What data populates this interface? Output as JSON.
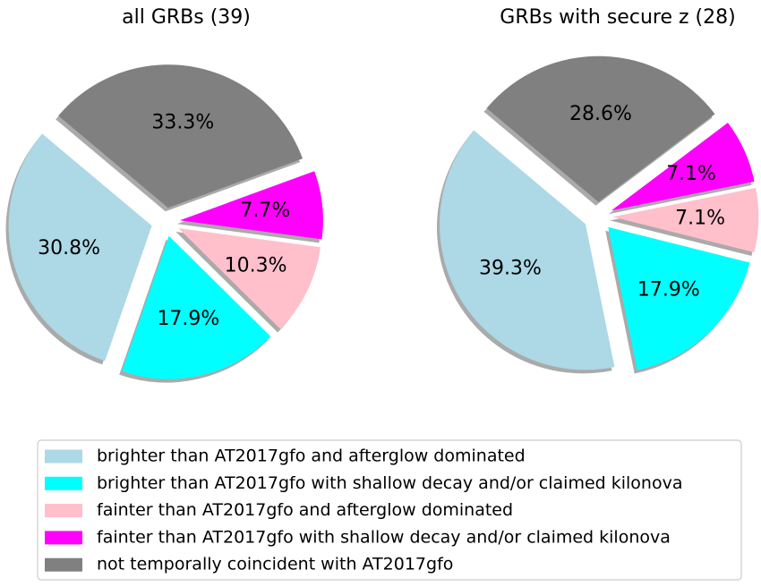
{
  "chart_data": [
    {
      "type": "pie",
      "title": "all GRBs (39)",
      "values": [
        30.8,
        17.9,
        10.3,
        7.7,
        33.3
      ],
      "value_labels": [
        "30.8%",
        "17.9%",
        "10.3%",
        "7.7%",
        "33.3%"
      ]
    },
    {
      "type": "pie",
      "title": "GRBs with secure z (28)",
      "values": [
        39.3,
        17.9,
        7.1,
        7.1,
        28.6
      ],
      "value_labels": [
        "39.3%",
        "17.9%",
        "7.1%",
        "7.1%",
        "28.6%"
      ]
    }
  ],
  "legend": {
    "categories": [
      "brighter than AT2017gfo and afterglow dominated",
      "brighter than AT2017gfo with shallow decay and/or claimed kilonova",
      "fainter than AT2017gfo and afterglow dominated",
      "fainter than AT2017gfo with shallow decay and/or claimed kilonova",
      "not temporally coincident with AT2017gfo"
    ],
    "colors": [
      "#add8e6",
      "#00ffff",
      "#ffc0cb",
      "#ff00ff",
      "#808080"
    ]
  }
}
